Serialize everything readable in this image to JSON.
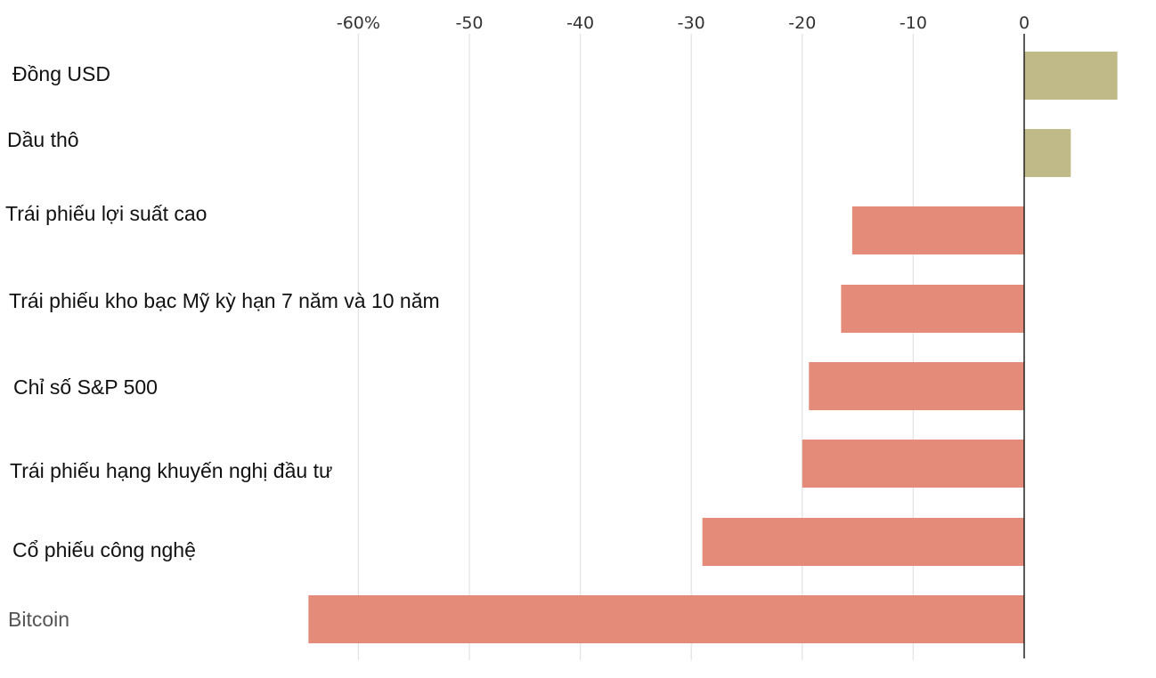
{
  "colors": {
    "positive": "#bfba88",
    "negative": "#e48b79",
    "grid": "#e3e3e3",
    "zero_line": "#222222"
  },
  "chart_data": {
    "type": "bar",
    "orientation": "horizontal",
    "title": "",
    "xlabel": "",
    "ylabel": "",
    "xlim": [
      -65,
      10
    ],
    "grid": true,
    "x_ticks": [
      {
        "value": -60,
        "label": "-60%"
      },
      {
        "value": -50,
        "label": "-50"
      },
      {
        "value": -40,
        "label": "-40"
      },
      {
        "value": -30,
        "label": "-30"
      },
      {
        "value": -20,
        "label": "-20"
      },
      {
        "value": -10,
        "label": "-10"
      },
      {
        "value": 0,
        "label": "0"
      }
    ],
    "categories": [
      "Đồng USD",
      "Dầu thô",
      "Trái phiếu lợi suất cao",
      "Trái phiếu kho bạc Mỹ kỳ hạn 7 năm và 10 năm",
      "Chỉ số S&P 500",
      "Trái phiếu hạng khuyến nghị đầu tư",
      "Cổ phiếu công nghệ",
      "Bitcoin"
    ],
    "values": [
      8.4,
      4.2,
      -15.5,
      -16.5,
      -19.4,
      -20.0,
      -29.0,
      -64.5
    ]
  }
}
